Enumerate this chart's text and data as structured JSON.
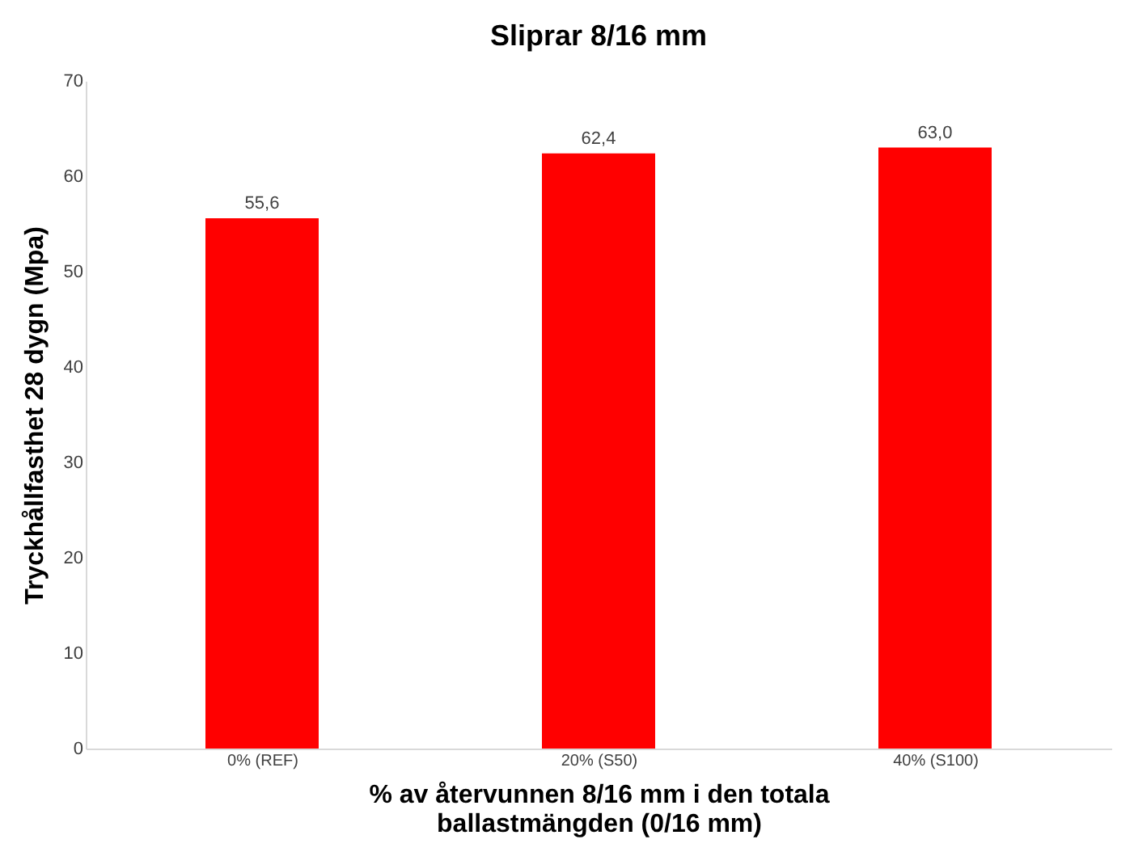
{
  "chart_data": {
    "type": "bar",
    "title": "Sliprar 8/16 mm",
    "xlabel": "% av återvunnen 8/16 mm i den totala\nballastmängden (0/16 mm)",
    "ylabel": "Tryckhållfasthet 28 dygn (Mpa)",
    "categories": [
      "0% (REF)",
      "20% (S50)",
      "40% (S100)"
    ],
    "values": [
      55.6,
      62.4,
      63.0
    ],
    "value_labels": [
      "55,6",
      "62,4",
      "63,0"
    ],
    "color": "#ff0000",
    "ylim": [
      0,
      70
    ],
    "yticks": [
      0,
      10,
      20,
      30,
      40,
      50,
      60,
      70
    ],
    "grid": false
  }
}
